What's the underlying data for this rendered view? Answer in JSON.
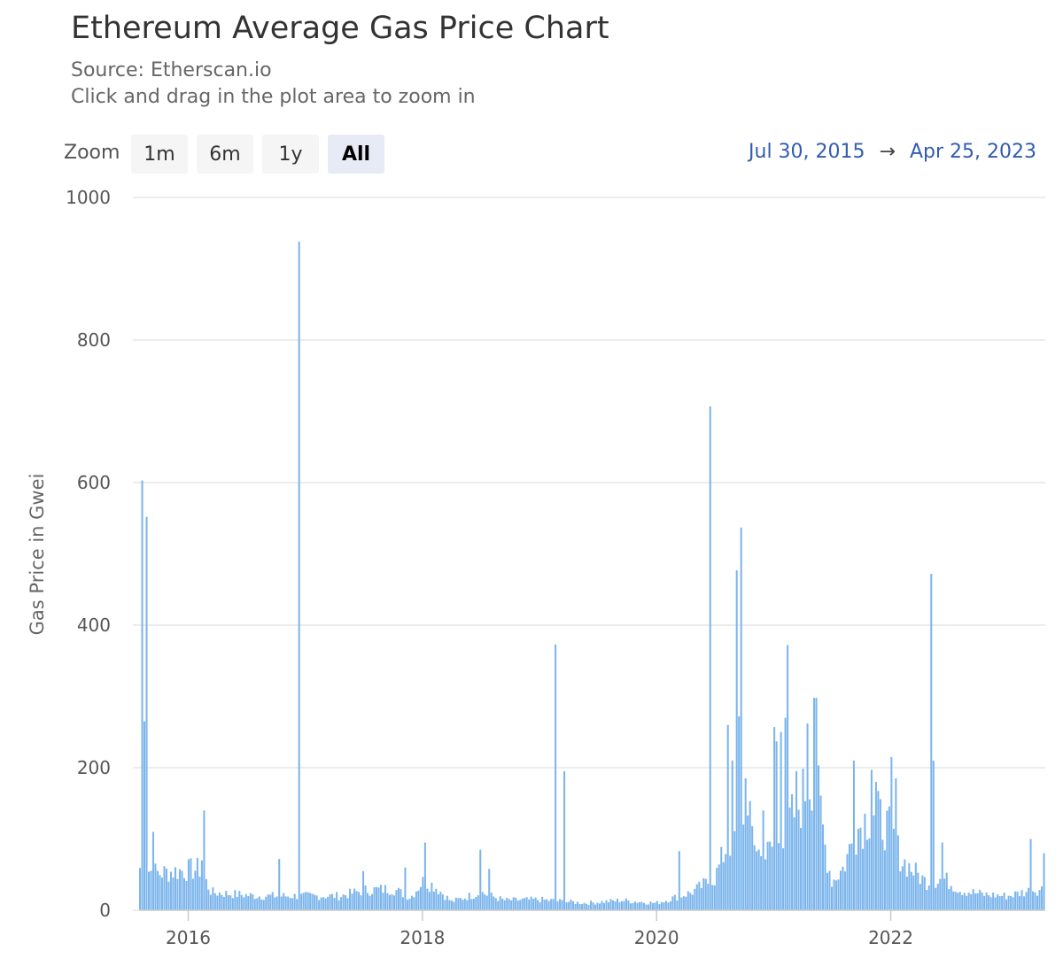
{
  "header": {
    "title": "Ethereum Average Gas Price Chart",
    "source": "Source: Etherscan.io",
    "hint": "Click and drag in the plot area to zoom in"
  },
  "zoom": {
    "label": "Zoom",
    "buttons": [
      "1m",
      "6m",
      "1y",
      "All"
    ],
    "active": "All"
  },
  "range": {
    "from": "Jul 30, 2015",
    "arrow": "→",
    "to": "Apr 25, 2023"
  },
  "colors": {
    "bar": "#7cb5ec",
    "grid": "#e6e6e6",
    "range_text": "#335cad"
  },
  "chart_data": {
    "type": "bar",
    "ylabel": "Gas Price in Gwei",
    "ylim": [
      0,
      1000
    ],
    "yticks": [
      0,
      200,
      400,
      600,
      800,
      1000
    ],
    "xticks": [
      "2016",
      "2018",
      "2020",
      "2022"
    ],
    "xlim": [
      2015.58,
      2023.32
    ],
    "grid": true,
    "baseline_profile": [
      [
        2015.58,
        60
      ],
      [
        2015.75,
        52
      ],
      [
        2015.9,
        55
      ],
      [
        2016.1,
        58
      ],
      [
        2016.2,
        25
      ],
      [
        2016.6,
        20
      ],
      [
        2016.9,
        20
      ],
      [
        2017.3,
        20
      ],
      [
        2017.5,
        28
      ],
      [
        2017.75,
        30
      ],
      [
        2017.9,
        18
      ],
      [
        2018.0,
        40
      ],
      [
        2018.1,
        35
      ],
      [
        2018.25,
        12
      ],
      [
        2018.5,
        25
      ],
      [
        2018.7,
        14
      ],
      [
        2019.0,
        15
      ],
      [
        2019.4,
        10
      ],
      [
        2019.7,
        14
      ],
      [
        2020.0,
        10
      ],
      [
        2020.3,
        25
      ],
      [
        2020.5,
        45
      ],
      [
        2020.6,
        90
      ],
      [
        2020.7,
        110
      ],
      [
        2020.8,
        120
      ],
      [
        2020.9,
        70
      ],
      [
        2021.0,
        90
      ],
      [
        2021.2,
        140
      ],
      [
        2021.35,
        200
      ],
      [
        2021.45,
        80
      ],
      [
        2021.5,
        40
      ],
      [
        2021.6,
        60
      ],
      [
        2021.7,
        110
      ],
      [
        2021.85,
        140
      ],
      [
        2022.0,
        110
      ],
      [
        2022.1,
        70
      ],
      [
        2022.3,
        40
      ],
      [
        2022.45,
        45
      ],
      [
        2022.6,
        28
      ],
      [
        2022.8,
        22
      ],
      [
        2023.0,
        20
      ],
      [
        2023.2,
        28
      ],
      [
        2023.32,
        30
      ]
    ],
    "peaks": [
      {
        "x": 2015.6,
        "value": 603
      },
      {
        "x": 2015.61,
        "value": 475
      },
      {
        "x": 2015.62,
        "value": 265
      },
      {
        "x": 2015.64,
        "value": 552
      },
      {
        "x": 2015.65,
        "value": 90
      },
      {
        "x": 2015.7,
        "value": 110
      },
      {
        "x": 2016.13,
        "value": 140
      },
      {
        "x": 2016.11,
        "value": 70
      },
      {
        "x": 2016.78,
        "value": 72
      },
      {
        "x": 2016.95,
        "value": 938
      },
      {
        "x": 2017.5,
        "value": 55
      },
      {
        "x": 2017.85,
        "value": 60
      },
      {
        "x": 2018.02,
        "value": 95
      },
      {
        "x": 2018.5,
        "value": 85
      },
      {
        "x": 2018.58,
        "value": 58
      },
      {
        "x": 2019.14,
        "value": 373
      },
      {
        "x": 2019.22,
        "value": 195
      },
      {
        "x": 2020.2,
        "value": 83
      },
      {
        "x": 2020.46,
        "value": 707
      },
      {
        "x": 2020.62,
        "value": 260
      },
      {
        "x": 2020.65,
        "value": 210
      },
      {
        "x": 2020.68,
        "value": 477
      },
      {
        "x": 2020.7,
        "value": 272
      },
      {
        "x": 2020.73,
        "value": 537
      },
      {
        "x": 2020.76,
        "value": 185
      },
      {
        "x": 2020.92,
        "value": 140
      },
      {
        "x": 2021.0,
        "value": 257
      },
      {
        "x": 2021.02,
        "value": 237
      },
      {
        "x": 2021.06,
        "value": 250
      },
      {
        "x": 2021.1,
        "value": 270
      },
      {
        "x": 2021.12,
        "value": 372
      },
      {
        "x": 2021.2,
        "value": 195
      },
      {
        "x": 2021.26,
        "value": 163
      },
      {
        "x": 2021.3,
        "value": 262
      },
      {
        "x": 2021.34,
        "value": 298
      },
      {
        "x": 2021.36,
        "value": 298
      },
      {
        "x": 2021.69,
        "value": 210
      },
      {
        "x": 2021.84,
        "value": 197
      },
      {
        "x": 2021.88,
        "value": 180
      },
      {
        "x": 2022.0,
        "value": 215
      },
      {
        "x": 2022.04,
        "value": 185
      },
      {
        "x": 2022.34,
        "value": 472
      },
      {
        "x": 2022.37,
        "value": 210
      },
      {
        "x": 2022.45,
        "value": 95
      },
      {
        "x": 2023.2,
        "value": 100
      },
      {
        "x": 2023.32,
        "value": 80
      }
    ]
  }
}
